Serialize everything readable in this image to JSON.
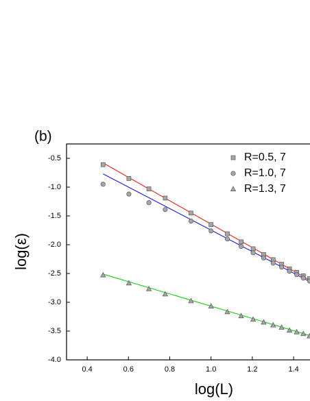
{
  "chart_data": {
    "type": "scatter",
    "title": "(b)",
    "x_label": "log(L)",
    "y_label": "log(ε)",
    "x": [
      0.477,
      0.602,
      0.699,
      0.778,
      0.903,
      1.0,
      1.079,
      1.146,
      1.204,
      1.255,
      1.301,
      1.342,
      1.38,
      1.415,
      1.447,
      1.477
    ],
    "series": [
      {
        "name": "R=0.5, 7",
        "marker": "square",
        "color": "#ff0000",
        "values": [
          -0.61,
          -0.85,
          -1.03,
          -1.19,
          -1.45,
          -1.65,
          -1.81,
          -1.95,
          -2.07,
          -2.17,
          -2.26,
          -2.34,
          -2.42,
          -2.48,
          -2.54,
          -2.59
        ],
        "fit": {
          "x": [
            0.477,
            1.5
          ],
          "values": [
            -0.58,
            -2.66
          ]
        }
      },
      {
        "name": "R=1.0, 7",
        "marker": "circle",
        "color": "#0000ff",
        "values": [
          -0.95,
          -1.12,
          -1.27,
          -1.39,
          -1.59,
          -1.76,
          -1.9,
          -2.03,
          -2.14,
          -2.23,
          -2.32,
          -2.39,
          -2.46,
          -2.52,
          -2.58,
          -2.63
        ],
        "fit": {
          "x": [
            0.477,
            1.5
          ],
          "values": [
            -0.77,
            -2.68
          ]
        }
      },
      {
        "name": "R=1.3, 7",
        "marker": "triangle",
        "color": "#00cc00",
        "values": [
          -2.53,
          -2.67,
          -2.77,
          -2.86,
          -2.98,
          -3.07,
          -3.17,
          -3.24,
          -3.3,
          -3.35,
          -3.4,
          -3.44,
          -3.49,
          -3.52,
          -3.55,
          -3.59
        ],
        "fit": {
          "x": [
            0.477,
            1.5
          ],
          "values": [
            -2.51,
            -3.6
          ]
        }
      }
    ],
    "marker_fill": "#a6a6a6",
    "xlim": [
      0.3,
      1.5
    ],
    "xticks": [
      0.4,
      0.6,
      0.8,
      {
        "value": 1.0,
        "label": "1.0"
      },
      1.2,
      1.4
    ],
    "ylim": [
      -4.0,
      -0.25
    ],
    "yticks": [
      -0.5,
      {
        "value": -1.0,
        "label": "-1.0"
      },
      -1.5,
      {
        "value": -2.0,
        "label": "-2.0"
      },
      -2.5,
      {
        "value": -3.0,
        "label": "-3.0"
      },
      -3.5,
      {
        "value": -4.0,
        "label": "-4.0"
      }
    ],
    "legend": "upper right"
  }
}
